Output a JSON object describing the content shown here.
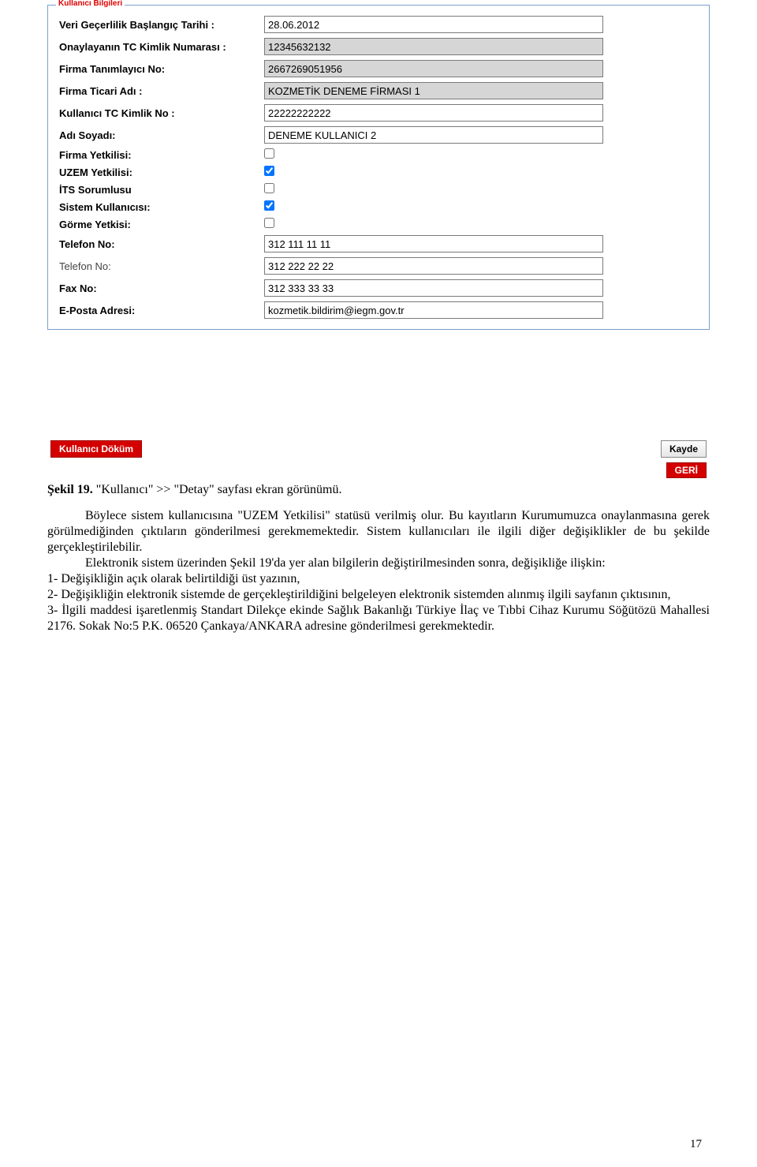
{
  "form": {
    "legend": "Kullanıcı Bilgileri",
    "rows": [
      {
        "label": "Veri Geçerlilik Başlangıç Tarihi :",
        "value": "28.06.2012",
        "type": "text",
        "readonly": false,
        "bold": true
      },
      {
        "label": "Onaylayanın TC Kimlik Numarası :",
        "value": "12345632132",
        "type": "text",
        "readonly": true,
        "bold": true
      },
      {
        "label": "Firma Tanımlayıcı No:",
        "value": "2667269051956",
        "type": "text",
        "readonly": true,
        "bold": true
      },
      {
        "label": "Firma Ticari Adı :",
        "value": "KOZMETİK DENEME FİRMASI 1",
        "type": "text",
        "readonly": true,
        "bold": true
      },
      {
        "label": "Kullanıcı TC Kimlik No :",
        "value": "22222222222",
        "type": "text",
        "readonly": false,
        "bold": true
      },
      {
        "label": "Adı Soyadı:",
        "value": "DENEME KULLANICI 2",
        "type": "text",
        "readonly": false,
        "bold": true
      },
      {
        "label": "Firma Yetkilisi:",
        "checked": false,
        "type": "checkbox",
        "bold": true
      },
      {
        "label": "UZEM Yetkilisi:",
        "checked": true,
        "type": "checkbox",
        "bold": true
      },
      {
        "label": "İTS Sorumlusu",
        "checked": false,
        "type": "checkbox",
        "bold": true
      },
      {
        "label": "Sistem Kullanıcısı:",
        "checked": true,
        "type": "checkbox",
        "bold": true
      },
      {
        "label": "Görme Yetkisi:",
        "checked": false,
        "type": "checkbox",
        "bold": true
      },
      {
        "label": "Telefon No:",
        "value": "312 111 11 11",
        "type": "text",
        "readonly": false,
        "bold": true
      },
      {
        "label": "Telefon No:",
        "value": "312 222 22 22",
        "type": "text",
        "readonly": false,
        "bold": false
      },
      {
        "label": "Fax No:",
        "value": "312 333 33 33",
        "type": "text",
        "readonly": false,
        "bold": true
      },
      {
        "label": "E-Posta Adresi:",
        "value": "kozmetik.bildirim@iegm.gov.tr",
        "type": "text",
        "readonly": false,
        "bold": true
      }
    ]
  },
  "buttons": {
    "dump": "Kullanıcı Döküm",
    "save": "Kayde",
    "back": "GERİ"
  },
  "caption": {
    "prefix": "Şekil 19.",
    "text": " \"Kullanıcı\" >> \"Detay\" sayfası ekran görünümü."
  },
  "paragraphs": {
    "p1": "Böylece sistem kullanıcısına \"UZEM Yetkilisi\" statüsü verilmiş olur. Bu kayıtların Kurumumuzca onaylanmasına gerek görülmediğinden çıktıların gönderilmesi gerekmemektedir. Sistem kullanıcıları ile ilgili diğer değişiklikler de bu şekilde gerçekleştirilebilir.",
    "p2": "Elektronik sistem üzerinden Şekil 19'da yer alan bilgilerin değiştirilmesinden sonra, değişikliğe ilişkin:",
    "l1": "1-  Değişikliğin açık olarak belirtildiği üst yazının,",
    "l2": "2-  Değişikliğin elektronik sistemde de gerçekleştirildiğini belgeleyen elektronik sistemden alınmış ilgili sayfanın çıktısının,",
    "l3": "3-  İlgili maddesi işaretlenmiş Standart Dilekçe ekinde Sağlık Bakanlığı Türkiye İlaç ve Tıbbi Cihaz Kurumu Söğütözü Mahallesi 2176. Sokak No:5 P.K. 06520 Çankaya/ANKARA adresine gönderilmesi gerekmektedir."
  },
  "pageNumber": "17",
  "colors": {
    "panel_border": "#7a9fcc",
    "legend_color": "#e00000",
    "readonly_bg": "#d6d6d6",
    "btn_red_bg": "#d40000",
    "btn_gray_top": "#fdfdfd",
    "btn_gray_bottom": "#e6e6e6"
  }
}
